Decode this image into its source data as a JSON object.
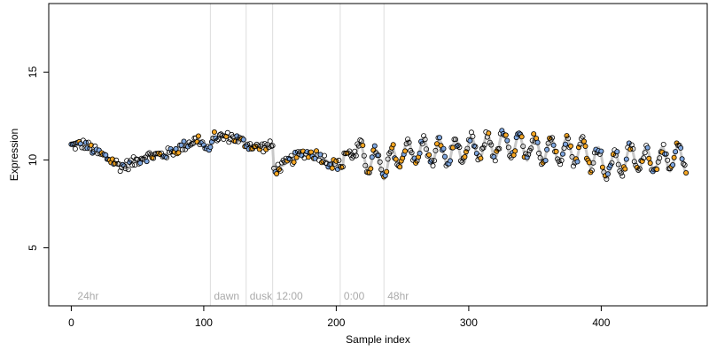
{
  "chart_data": {
    "type": "scatter",
    "xlabel": "Sample index",
    "ylabel": "Expression",
    "xlim": [
      -17,
      480
    ],
    "ylim": [
      1.7,
      18.9
    ],
    "x_ticks": [
      0,
      100,
      200,
      300,
      400
    ],
    "y_ticks": [
      5,
      10,
      15
    ],
    "grid": false,
    "marker": "open-circle",
    "colors": {
      "marker_edge": "#000000",
      "high_fill": "#f5a623",
      "low_fill": "#7fa7e0",
      "smooth_line": "#c8c8c8",
      "annotation_line": "#dddddd",
      "annotation_text": "#aaaaaa"
    },
    "annotations": [
      {
        "x": 2,
        "label": "24hr",
        "line": false
      },
      {
        "x": 105,
        "label": "dawn",
        "line": true
      },
      {
        "x": 132,
        "label": "dusk",
        "line": true
      },
      {
        "x": 152,
        "label": "12:00",
        "line": true
      },
      {
        "x": 203,
        "label": "0:00",
        "line": true
      },
      {
        "x": 236,
        "label": "48hr",
        "line": true
      }
    ],
    "segments": [
      {
        "x_start": 0,
        "x_end": 105,
        "knots": [
          [
            0,
            10.8
          ],
          [
            10,
            10.9
          ],
          [
            20,
            10.4
          ],
          [
            30,
            10.0
          ],
          [
            38,
            9.6
          ],
          [
            48,
            9.9
          ],
          [
            55,
            10.2
          ],
          [
            70,
            10.3
          ],
          [
            80,
            10.6
          ],
          [
            90,
            11.0
          ],
          [
            96,
            11.2
          ],
          [
            103,
            10.5
          ]
        ]
      },
      {
        "x_start": 105,
        "x_end": 152,
        "knots": [
          [
            105,
            11.3
          ],
          [
            115,
            11.3
          ],
          [
            122,
            11.3
          ],
          [
            130,
            11.0
          ],
          [
            140,
            10.7
          ],
          [
            152,
            10.8
          ]
        ]
      },
      {
        "x_start": 152,
        "x_end": 205,
        "knots": [
          [
            153,
            9.4
          ],
          [
            160,
            9.7
          ],
          [
            168,
            10.1
          ],
          [
            176,
            10.4
          ],
          [
            186,
            10.3
          ],
          [
            196,
            9.8
          ],
          [
            204,
            9.7
          ]
        ]
      },
      {
        "x_start": 205,
        "x_end": 465,
        "knots": [
          [
            205,
            10.4
          ],
          [
            215,
            10.3
          ],
          [
            225,
            10.1
          ],
          [
            236,
            9.6
          ],
          [
            250,
            10.4
          ],
          [
            265,
            10.5
          ],
          [
            280,
            10.4
          ],
          [
            295,
            10.5
          ],
          [
            310,
            10.7
          ],
          [
            325,
            10.9
          ],
          [
            340,
            10.7
          ],
          [
            355,
            10.6
          ],
          [
            370,
            10.6
          ],
          [
            385,
            10.5
          ],
          [
            395,
            10.2
          ],
          [
            405,
            9.6
          ],
          [
            420,
            10.1
          ],
          [
            440,
            10.0
          ],
          [
            460,
            10.1
          ],
          [
            465,
            10.0
          ]
        ]
      }
    ],
    "oscillations": [
      {
        "from": 215,
        "to": 465,
        "amplitude": 0.7,
        "period": 12
      }
    ],
    "n_points": 465
  }
}
